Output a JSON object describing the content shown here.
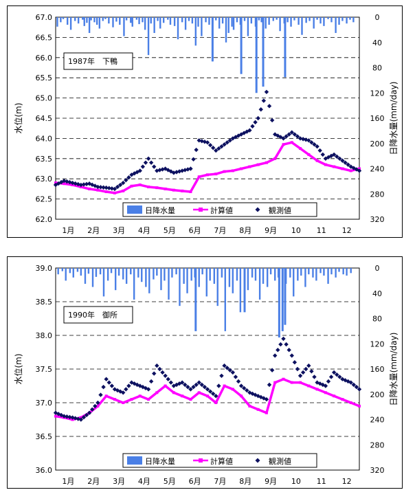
{
  "chart_data": [
    {
      "type": "line",
      "annotation": "1987年　下鴨",
      "ylabel": "水位(m)",
      "y2label": "日降水量(mm/day)",
      "ylim": [
        62.0,
        67.0
      ],
      "yticks": [
        "62.0",
        "62.5",
        "63.0",
        "63.5",
        "64.0",
        "64.5",
        "65.0",
        "65.5",
        "66.0",
        "66.5",
        "67.0"
      ],
      "y2lim": [
        0,
        320
      ],
      "y2ticks": [
        "0",
        "40",
        "80",
        "120",
        "160",
        "200",
        "240",
        "280",
        "320"
      ],
      "y2_reversed": true,
      "x_categories": [
        "1月",
        "2月",
        "3月",
        "4月",
        "5月",
        "6月",
        "7月",
        "8月",
        "9月",
        "10",
        "11",
        "12"
      ],
      "grid": "dashed-horizontal",
      "legend_position": "bottom-center",
      "legend": [
        "日降水量",
        "計算値",
        "観測値"
      ],
      "colors": {
        "rain": "#4a7fe6",
        "calc": "#ff00ff",
        "obs": "#0d1160"
      },
      "series": [
        {
          "name": "日降水量",
          "kind": "bar",
          "x": [
            0.2,
            0.6,
            0.9,
            1.4,
            1.8,
            2.3,
            2.7,
            3.2,
            3.4,
            3.7,
            4.0,
            4.2,
            4.6,
            4.9,
            5.2,
            5.6,
            5.9,
            6.3,
            6.8,
            7.2,
            7.6,
            8.1,
            8.4,
            8.9,
            9.1,
            9.6,
            9.9,
            10.3,
            10.6,
            11.0,
            11.3,
            11.7,
            12.1,
            12.4,
            12.8,
            13.3,
            13.6,
            14.1,
            14.5,
            15.0,
            15.4,
            15.8,
            16.2,
            16.6,
            16.9,
            17.3,
            17.8,
            18.2,
            18.6,
            19.0,
            19.4,
            19.8,
            20.2,
            20.5,
            20.9,
            21.1,
            21.5,
            21.9,
            22.4,
            22.8,
            23.2,
            23.7,
            24.1,
            24.4,
            24.9,
            25.3,
            25.8,
            26.2,
            26.6,
            27.1,
            27.5,
            27.9,
            28.3,
            28.8,
            29.2,
            29.7,
            30.1,
            30.6,
            31.0,
            31.4,
            31.8,
            32.3,
            32.7,
            33.2,
            33.6,
            34.0,
            34.5,
            34.9,
            35.3
          ],
          "values": [
            15,
            8,
            3,
            12,
            20,
            6,
            10,
            4,
            14,
            9,
            25,
            5,
            8,
            12,
            18,
            6,
            3,
            10,
            16,
            7,
            12,
            30,
            5,
            9,
            15,
            4,
            11,
            8,
            20,
            60,
            10,
            25,
            6,
            18,
            9,
            4,
            12,
            14,
            35,
            8,
            20,
            6,
            10,
            45,
            15,
            30,
            8,
            12,
            70,
            5,
            18,
            10,
            40,
            25,
            15,
            20,
            8,
            12,
            6,
            30,
            10,
            15,
            5,
            8,
            18,
            12,
            6,
            4,
            22,
            10,
            8,
            15,
            5,
            12,
            28,
            9,
            6,
            18,
            4,
            10,
            14,
            3,
            8,
            25,
            12,
            6,
            10,
            4,
            8
          ],
          "peaks": [
            {
              "x": 23.8,
              "v": 120
            },
            {
              "x": 24.6,
              "v": 110
            },
            {
              "x": 22.0,
              "v": 90
            },
            {
              "x": 27.2,
              "v": 95
            },
            {
              "x": 18.6,
              "v": 70
            }
          ]
        },
        {
          "name": "計算値",
          "kind": "line",
          "x": [
            0,
            1,
            2,
            3,
            4,
            5,
            6,
            7,
            8,
            9,
            10,
            11,
            12,
            13,
            14,
            15,
            16,
            17,
            18,
            19,
            20,
            21,
            22,
            23,
            24,
            25,
            26,
            27,
            28,
            29,
            30,
            31,
            32,
            33,
            34,
            35,
            36
          ],
          "values": [
            62.9,
            62.88,
            62.85,
            62.8,
            62.75,
            62.72,
            62.68,
            62.65,
            62.7,
            62.82,
            62.85,
            62.8,
            62.78,
            62.75,
            62.72,
            62.7,
            62.68,
            63.05,
            63.1,
            63.12,
            63.18,
            63.2,
            63.25,
            63.3,
            63.35,
            63.4,
            63.5,
            63.85,
            63.9,
            63.75,
            63.6,
            63.45,
            63.35,
            63.3,
            63.25,
            63.2,
            63.25
          ]
        },
        {
          "name": "観測値",
          "kind": "scatter",
          "x": [
            0,
            1,
            2,
            3,
            4,
            5,
            6,
            7,
            8,
            9,
            10,
            11,
            12,
            13,
            14,
            15,
            16,
            17,
            18,
            19,
            20,
            21,
            22,
            23,
            24,
            25,
            26,
            27,
            28,
            29,
            30,
            31,
            32,
            33,
            34,
            35,
            36
          ],
          "values": [
            62.85,
            62.95,
            62.9,
            62.85,
            62.88,
            62.8,
            62.78,
            62.75,
            62.9,
            63.1,
            63.2,
            63.5,
            63.2,
            63.25,
            63.15,
            63.2,
            63.25,
            63.95,
            63.9,
            63.7,
            63.85,
            64.0,
            64.1,
            64.2,
            64.5,
            65.15,
            64.1,
            64.0,
            64.15,
            64.0,
            63.95,
            63.8,
            63.5,
            63.6,
            63.45,
            63.3,
            63.2
          ]
        }
      ]
    },
    {
      "type": "line",
      "annotation": "1990年　御所",
      "ylabel": "水位(m)",
      "y2label": "日降水量(mm/day)",
      "ylim": [
        36.0,
        39.0
      ],
      "yticks": [
        "36.0",
        "36.5",
        "37.0",
        "37.5",
        "38.0",
        "38.5",
        "39.0"
      ],
      "y2lim": [
        0,
        320
      ],
      "y2ticks": [
        "0",
        "40",
        "80",
        "120",
        "160",
        "200",
        "240",
        "280",
        "320"
      ],
      "y2_reversed": true,
      "x_categories": [
        "1月",
        "2月",
        "3月",
        "4月",
        "5月",
        "6月",
        "7月",
        "8月",
        "9月",
        "10",
        "11",
        "12"
      ],
      "grid": "dashed-horizontal",
      "legend_position": "bottom-center",
      "legend": [
        "日降水量",
        "計算値",
        "観測値"
      ],
      "colors": {
        "rain": "#4a7fe6",
        "calc": "#ff00ff",
        "obs": "#0d1160"
      },
      "series": [
        {
          "name": "日降水量",
          "kind": "bar",
          "x": [
            0.3,
            0.8,
            1.2,
            1.7,
            2.1,
            2.6,
            3.0,
            3.5,
            3.9,
            4.4,
            4.8,
            5.3,
            5.7,
            6.2,
            6.6,
            7.1,
            7.5,
            8.0,
            8.4,
            8.9,
            9.3,
            9.8,
            10.2,
            10.7,
            11.1,
            11.6,
            12.0,
            12.5,
            12.9,
            13.4,
            13.8,
            14.3,
            14.7,
            15.2,
            15.6,
            16.1,
            16.5,
            17.0,
            17.4,
            17.9,
            18.3,
            18.8,
            19.2,
            19.7,
            20.1,
            20.6,
            21.0,
            21.5,
            21.9,
            22.4,
            22.8,
            23.3,
            23.7,
            24.2,
            24.6,
            25.1,
            25.5,
            26.0,
            26.4,
            26.9,
            27.3,
            27.8,
            28.2,
            28.7,
            29.1,
            29.6,
            30.0,
            30.5,
            30.9,
            31.4,
            31.8,
            32.3,
            32.7,
            33.2,
            33.6,
            34.1,
            34.5,
            35.0
          ],
          "values": [
            10,
            5,
            20,
            8,
            15,
            6,
            12,
            25,
            9,
            30,
            14,
            10,
            45,
            20,
            8,
            35,
            12,
            18,
            25,
            10,
            50,
            15,
            22,
            30,
            40,
            18,
            12,
            35,
            20,
            50,
            15,
            10,
            60,
            25,
            40,
            20,
            15,
            30,
            10,
            45,
            20,
            25,
            60,
            15,
            100,
            30,
            40,
            20,
            70,
            25,
            35,
            15,
            20,
            50,
            25,
            30,
            10,
            20,
            15,
            35,
            25,
            15,
            45,
            20,
            12,
            30,
            10,
            15,
            20,
            8,
            12,
            25,
            10,
            15,
            6,
            10,
            12,
            8
          ],
          "peaks": [
            {
              "x": 26.5,
              "v": 110
            },
            {
              "x": 27.2,
              "v": 90
            },
            {
              "x": 26.9,
              "v": 100
            },
            {
              "x": 16.6,
              "v": 100
            },
            {
              "x": 22.4,
              "v": 70
            }
          ]
        },
        {
          "name": "計算値",
          "kind": "line",
          "x": [
            0,
            1,
            2,
            3,
            4,
            5,
            6,
            7,
            8,
            9,
            10,
            11,
            12,
            13,
            14,
            15,
            16,
            17,
            18,
            19,
            20,
            21,
            22,
            23,
            24,
            25,
            26,
            27,
            28,
            29,
            30,
            31,
            32,
            33,
            34,
            35,
            36
          ],
          "values": [
            36.8,
            36.78,
            36.75,
            36.78,
            36.85,
            36.95,
            37.1,
            37.05,
            37.0,
            37.05,
            37.1,
            37.05,
            37.15,
            37.25,
            37.15,
            37.1,
            37.05,
            37.15,
            37.1,
            37.0,
            37.25,
            37.2,
            37.1,
            36.95,
            36.9,
            36.85,
            37.3,
            37.35,
            37.3,
            37.3,
            37.25,
            37.2,
            37.15,
            37.1,
            37.05,
            37.0,
            36.95
          ]
        },
        {
          "name": "観測値",
          "kind": "scatter",
          "x": [
            0,
            1,
            2,
            3,
            4,
            5,
            6,
            7,
            8,
            9,
            10,
            11,
            12,
            13,
            14,
            15,
            16,
            17,
            18,
            19,
            20,
            21,
            22,
            23,
            24,
            25,
            26,
            27,
            28,
            29,
            30,
            31,
            32,
            33,
            34,
            35,
            36
          ],
          "values": [
            36.85,
            36.8,
            36.78,
            36.75,
            36.85,
            37.0,
            37.35,
            37.2,
            37.15,
            37.3,
            37.25,
            37.2,
            37.55,
            37.4,
            37.25,
            37.3,
            37.2,
            37.3,
            37.2,
            37.1,
            37.55,
            37.45,
            37.25,
            37.15,
            37.1,
            37.05,
            37.7,
            37.95,
            37.7,
            37.4,
            37.55,
            37.3,
            37.25,
            37.45,
            37.35,
            37.3,
            37.2
          ]
        }
      ]
    }
  ]
}
